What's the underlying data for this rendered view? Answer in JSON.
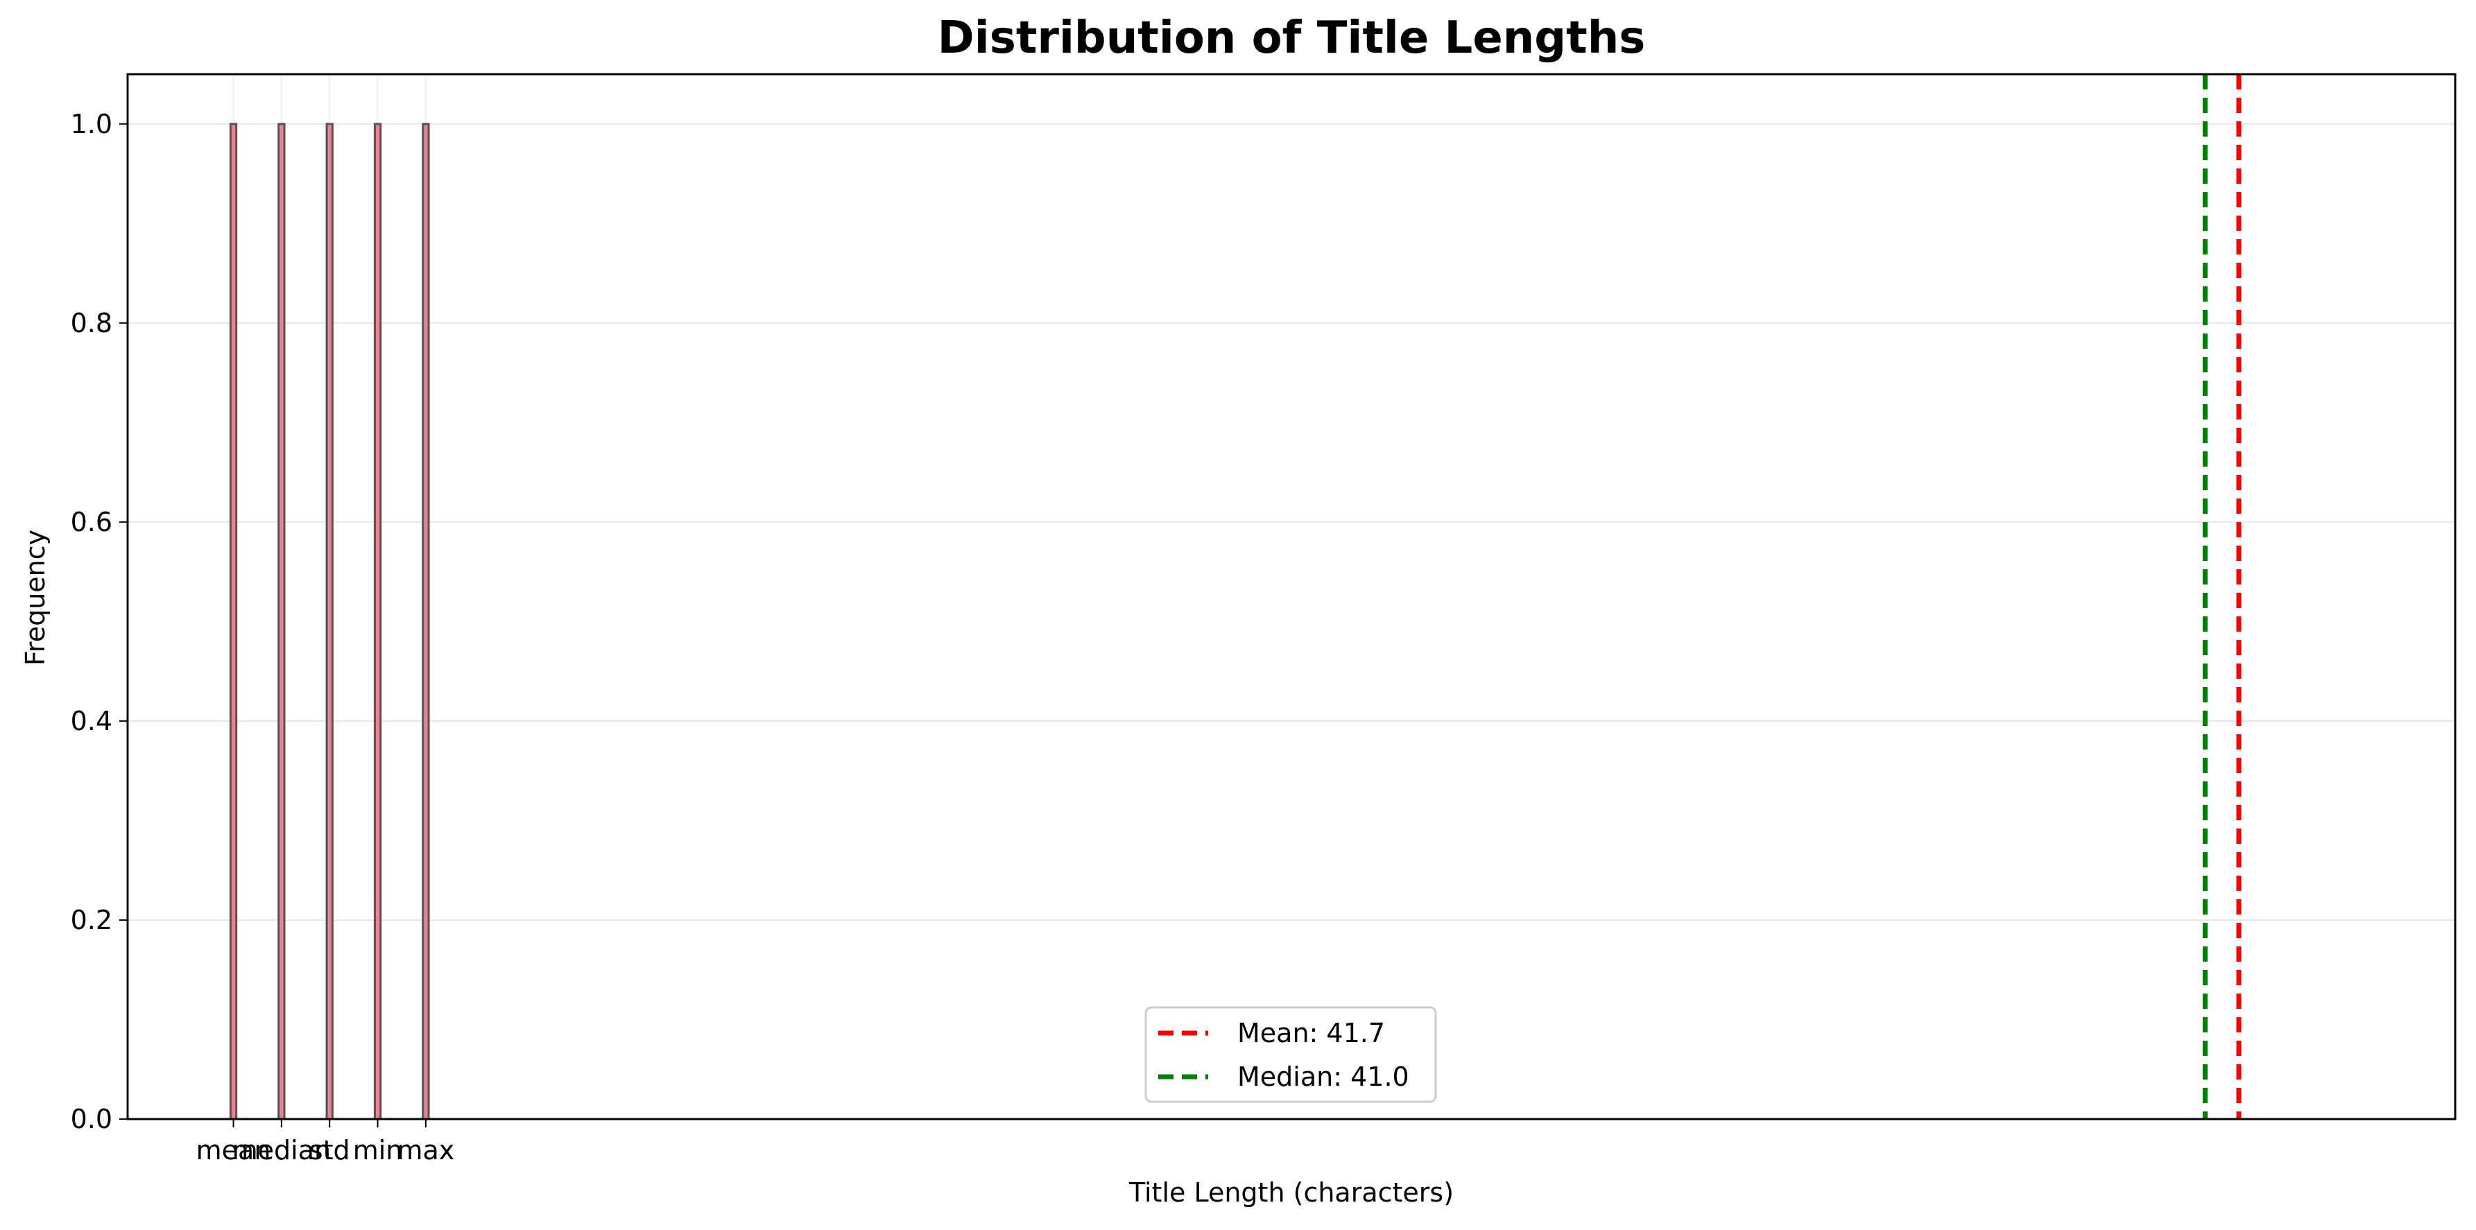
{
  "chart_data": {
    "type": "bar",
    "title": "Distribution of Title Lengths",
    "xlabel": "Title Length (characters)",
    "ylabel": "Frequency",
    "categories": [
      "mean",
      "median",
      "std",
      "min",
      "max"
    ],
    "values": [
      1.0,
      1.0,
      1.0,
      1.0,
      1.0
    ],
    "ylim": [
      0,
      1.05
    ],
    "yticks": [
      "0.0",
      "0.2",
      "0.4",
      "0.6",
      "0.8",
      "1.0"
    ],
    "ytick_values": [
      0.0,
      0.2,
      0.4,
      0.6,
      0.8,
      1.0
    ],
    "grid": true,
    "legend_position": "bottom-center",
    "reference_lines": [
      {
        "label": "Mean: 41.7",
        "x": 41.7,
        "color": "#ff0000",
        "style": "dashed"
      },
      {
        "label": "Median: 41.0",
        "x": 41.0,
        "color": "#008000",
        "style": "dashed"
      }
    ],
    "bar_color": "#f08090",
    "bar_edge_color": "#555555"
  }
}
